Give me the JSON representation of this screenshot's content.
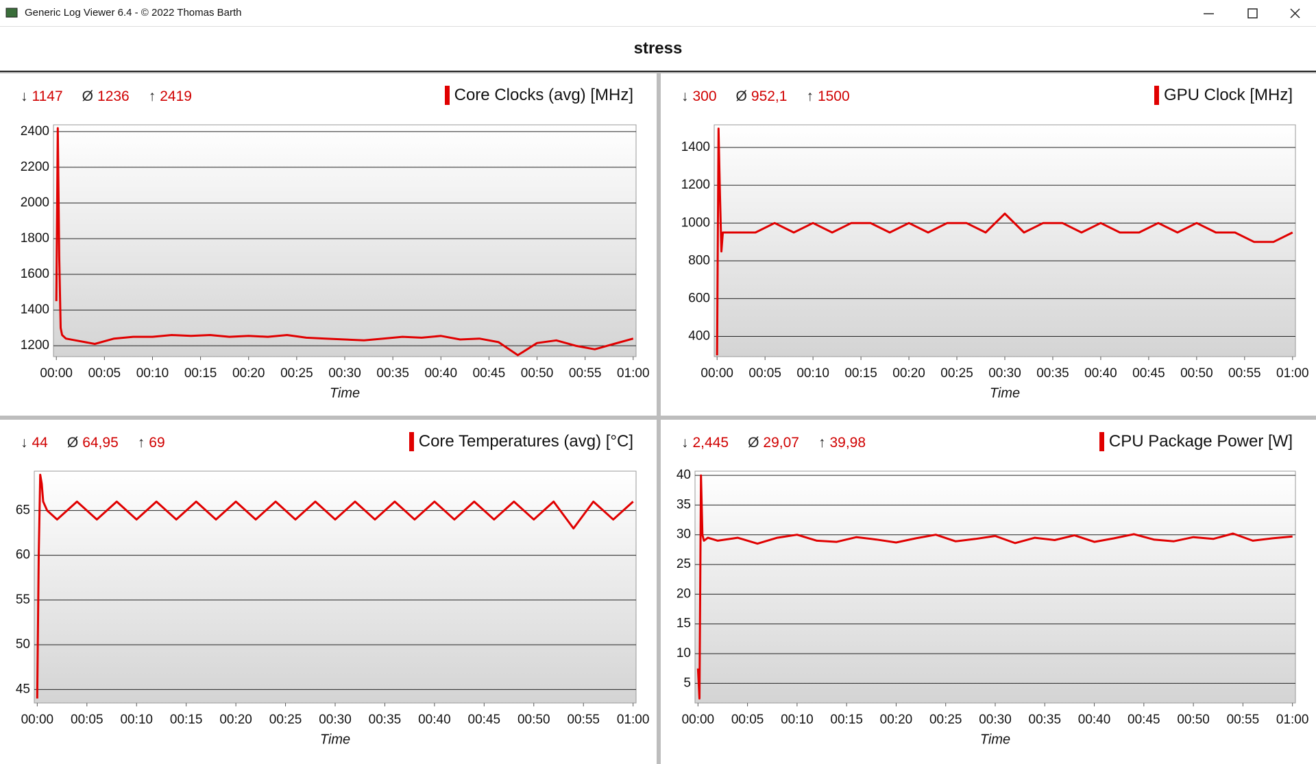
{
  "window": {
    "title": "Generic Log Viewer 6.4 - © 2022 Thomas Barth"
  },
  "header": {
    "title": "stress"
  },
  "stat_symbols": [
    "↓",
    "Ø",
    "↑"
  ],
  "chart_data": [
    {
      "type": "line",
      "x_label": "Time",
      "stats": [
        "1147",
        "1236",
        "2419"
      ],
      "series": [
        {
          "name": "Core Clocks (avg) [MHz]",
          "color": "#e00000",
          "x": [
            0,
            0.15,
            0.3,
            0.45,
            0.6,
            1,
            2,
            4,
            6,
            8,
            10,
            12,
            14,
            16,
            18,
            20,
            22,
            24,
            26,
            28,
            30,
            32,
            34,
            36,
            38,
            40,
            42,
            44,
            46,
            48,
            50,
            52,
            54,
            56,
            58,
            60
          ],
          "values": [
            1450,
            2419,
            1700,
            1300,
            1260,
            1240,
            1230,
            1210,
            1240,
            1250,
            1250,
            1260,
            1255,
            1260,
            1250,
            1255,
            1250,
            1260,
            1245,
            1240,
            1235,
            1230,
            1240,
            1250,
            1245,
            1255,
            1235,
            1240,
            1220,
            1147,
            1215,
            1230,
            1200,
            1180,
            1210,
            1240
          ]
        }
      ],
      "xlim": [
        -0.3,
        60.3
      ],
      "ylim": [
        1139,
        2438
      ],
      "yticks": [
        1200,
        1400,
        1600,
        1800,
        2000,
        2200,
        2400
      ],
      "xticks": [
        {
          "value": 0,
          "label": "00:00"
        },
        {
          "value": 5,
          "label": "00:05"
        },
        {
          "value": 10,
          "label": "00:10"
        },
        {
          "value": 15,
          "label": "00:15"
        },
        {
          "value": 20,
          "label": "00:20"
        },
        {
          "value": 25,
          "label": "00:25"
        },
        {
          "value": 30,
          "label": "00:30"
        },
        {
          "value": 35,
          "label": "00:35"
        },
        {
          "value": 40,
          "label": "00:40"
        },
        {
          "value": 45,
          "label": "00:45"
        },
        {
          "value": 50,
          "label": "00:50"
        },
        {
          "value": 55,
          "label": "00:55"
        },
        {
          "value": 60,
          "label": "01:00"
        }
      ],
      "grid": true
    },
    {
      "type": "line",
      "x_label": "Time",
      "stats": [
        "300",
        "952,1",
        "1500"
      ],
      "series": [
        {
          "name": "GPU Clock [MHz]",
          "color": "#e00000",
          "x": [
            0,
            0.15,
            0.3,
            0.45,
            0.6,
            1,
            2,
            4,
            6,
            8,
            10,
            12,
            14,
            16,
            18,
            20,
            22,
            24,
            26,
            28,
            30,
            32,
            34,
            36,
            38,
            40,
            42,
            44,
            46,
            48,
            50,
            52,
            54,
            56,
            58,
            60
          ],
          "values": [
            300,
            1500,
            1150,
            850,
            950,
            950,
            950,
            950,
            1000,
            950,
            1000,
            950,
            1000,
            1000,
            950,
            1000,
            950,
            1000,
            1000,
            950,
            1050,
            950,
            1000,
            1000,
            950,
            1000,
            950,
            950,
            1000,
            950,
            1000,
            950,
            950,
            900,
            900,
            950
          ]
        }
      ],
      "xlim": [
        -0.3,
        60.3
      ],
      "ylim": [
        293,
        1520
      ],
      "yticks": [
        400,
        600,
        800,
        1000,
        1200,
        1400
      ],
      "xticks": [
        {
          "value": 0,
          "label": "00:00"
        },
        {
          "value": 5,
          "label": "00:05"
        },
        {
          "value": 10,
          "label": "00:10"
        },
        {
          "value": 15,
          "label": "00:15"
        },
        {
          "value": 20,
          "label": "00:20"
        },
        {
          "value": 25,
          "label": "00:25"
        },
        {
          "value": 30,
          "label": "00:30"
        },
        {
          "value": 35,
          "label": "00:35"
        },
        {
          "value": 40,
          "label": "00:40"
        },
        {
          "value": 45,
          "label": "00:45"
        },
        {
          "value": 50,
          "label": "00:50"
        },
        {
          "value": 55,
          "label": "00:55"
        },
        {
          "value": 60,
          "label": "01:00"
        }
      ],
      "grid": true
    },
    {
      "type": "line",
      "x_label": "Time",
      "stats": [
        "44",
        "64,95",
        "69"
      ],
      "series": [
        {
          "name": "Core Temperatures (avg) [°C]",
          "color": "#e00000",
          "x": [
            0,
            0.15,
            0.3,
            0.45,
            0.6,
            1,
            2,
            4,
            6,
            8,
            10,
            12,
            14,
            16,
            18,
            20,
            22,
            24,
            26,
            28,
            30,
            32,
            34,
            36,
            38,
            40,
            42,
            44,
            46,
            48,
            50,
            52,
            54,
            56,
            58,
            60
          ],
          "values": [
            44,
            60,
            69,
            68,
            66,
            65,
            64,
            66,
            64,
            66,
            64,
            66,
            64,
            66,
            64,
            66,
            64,
            66,
            64,
            66,
            64,
            66,
            64,
            66,
            64,
            66,
            64,
            66,
            64,
            66,
            64,
            66,
            63,
            66,
            64,
            66
          ]
        }
      ],
      "xlim": [
        -0.3,
        60.3
      ],
      "ylim": [
        43.5,
        69.4
      ],
      "yticks": [
        45,
        50,
        55,
        60,
        65
      ],
      "xticks": [
        {
          "value": 0,
          "label": "00:00"
        },
        {
          "value": 5,
          "label": "00:05"
        },
        {
          "value": 10,
          "label": "00:10"
        },
        {
          "value": 15,
          "label": "00:15"
        },
        {
          "value": 20,
          "label": "00:20"
        },
        {
          "value": 25,
          "label": "00:25"
        },
        {
          "value": 30,
          "label": "00:30"
        },
        {
          "value": 35,
          "label": "00:35"
        },
        {
          "value": 40,
          "label": "00:40"
        },
        {
          "value": 45,
          "label": "00:45"
        },
        {
          "value": 50,
          "label": "00:50"
        },
        {
          "value": 55,
          "label": "00:55"
        },
        {
          "value": 60,
          "label": "01:00"
        }
      ],
      "grid": true
    },
    {
      "type": "line",
      "x_label": "Time",
      "stats": [
        "2,445",
        "29,07",
        "39,98"
      ],
      "series": [
        {
          "name": "CPU Package Power [W]",
          "color": "#e00000",
          "x": [
            0,
            0.15,
            0.3,
            0.45,
            0.6,
            1,
            2,
            4,
            6,
            8,
            10,
            12,
            14,
            16,
            18,
            20,
            22,
            24,
            26,
            28,
            30,
            32,
            34,
            36,
            38,
            40,
            42,
            44,
            46,
            48,
            50,
            52,
            54,
            56,
            58,
            60
          ],
          "values": [
            7.5,
            2.445,
            39.98,
            30,
            29,
            29.5,
            29,
            29.5,
            28.5,
            29.5,
            30,
            29,
            28.8,
            29.6,
            29.2,
            28.7,
            29.4,
            30,
            28.9,
            29.3,
            29.8,
            28.6,
            29.5,
            29.1,
            29.9,
            28.8,
            29.4,
            30.1,
            29.2,
            28.9,
            29.6,
            29.3,
            30.2,
            29,
            29.4,
            29.7
          ]
        }
      ],
      "xlim": [
        -0.3,
        60.3
      ],
      "ylim": [
        1.7,
        40.7
      ],
      "yticks": [
        5,
        10,
        15,
        20,
        25,
        30,
        35,
        40
      ],
      "xticks": [
        {
          "value": 0,
          "label": "00:00"
        },
        {
          "value": 5,
          "label": "00:05"
        },
        {
          "value": 10,
          "label": "00:10"
        },
        {
          "value": 15,
          "label": "00:15"
        },
        {
          "value": 20,
          "label": "00:20"
        },
        {
          "value": 25,
          "label": "00:25"
        },
        {
          "value": 30,
          "label": "00:30"
        },
        {
          "value": 35,
          "label": "00:35"
        },
        {
          "value": 40,
          "label": "00:40"
        },
        {
          "value": 45,
          "label": "00:45"
        },
        {
          "value": 50,
          "label": "00:50"
        },
        {
          "value": 55,
          "label": "00:55"
        },
        {
          "value": 60,
          "label": "01:00"
        }
      ],
      "grid": true
    }
  ]
}
